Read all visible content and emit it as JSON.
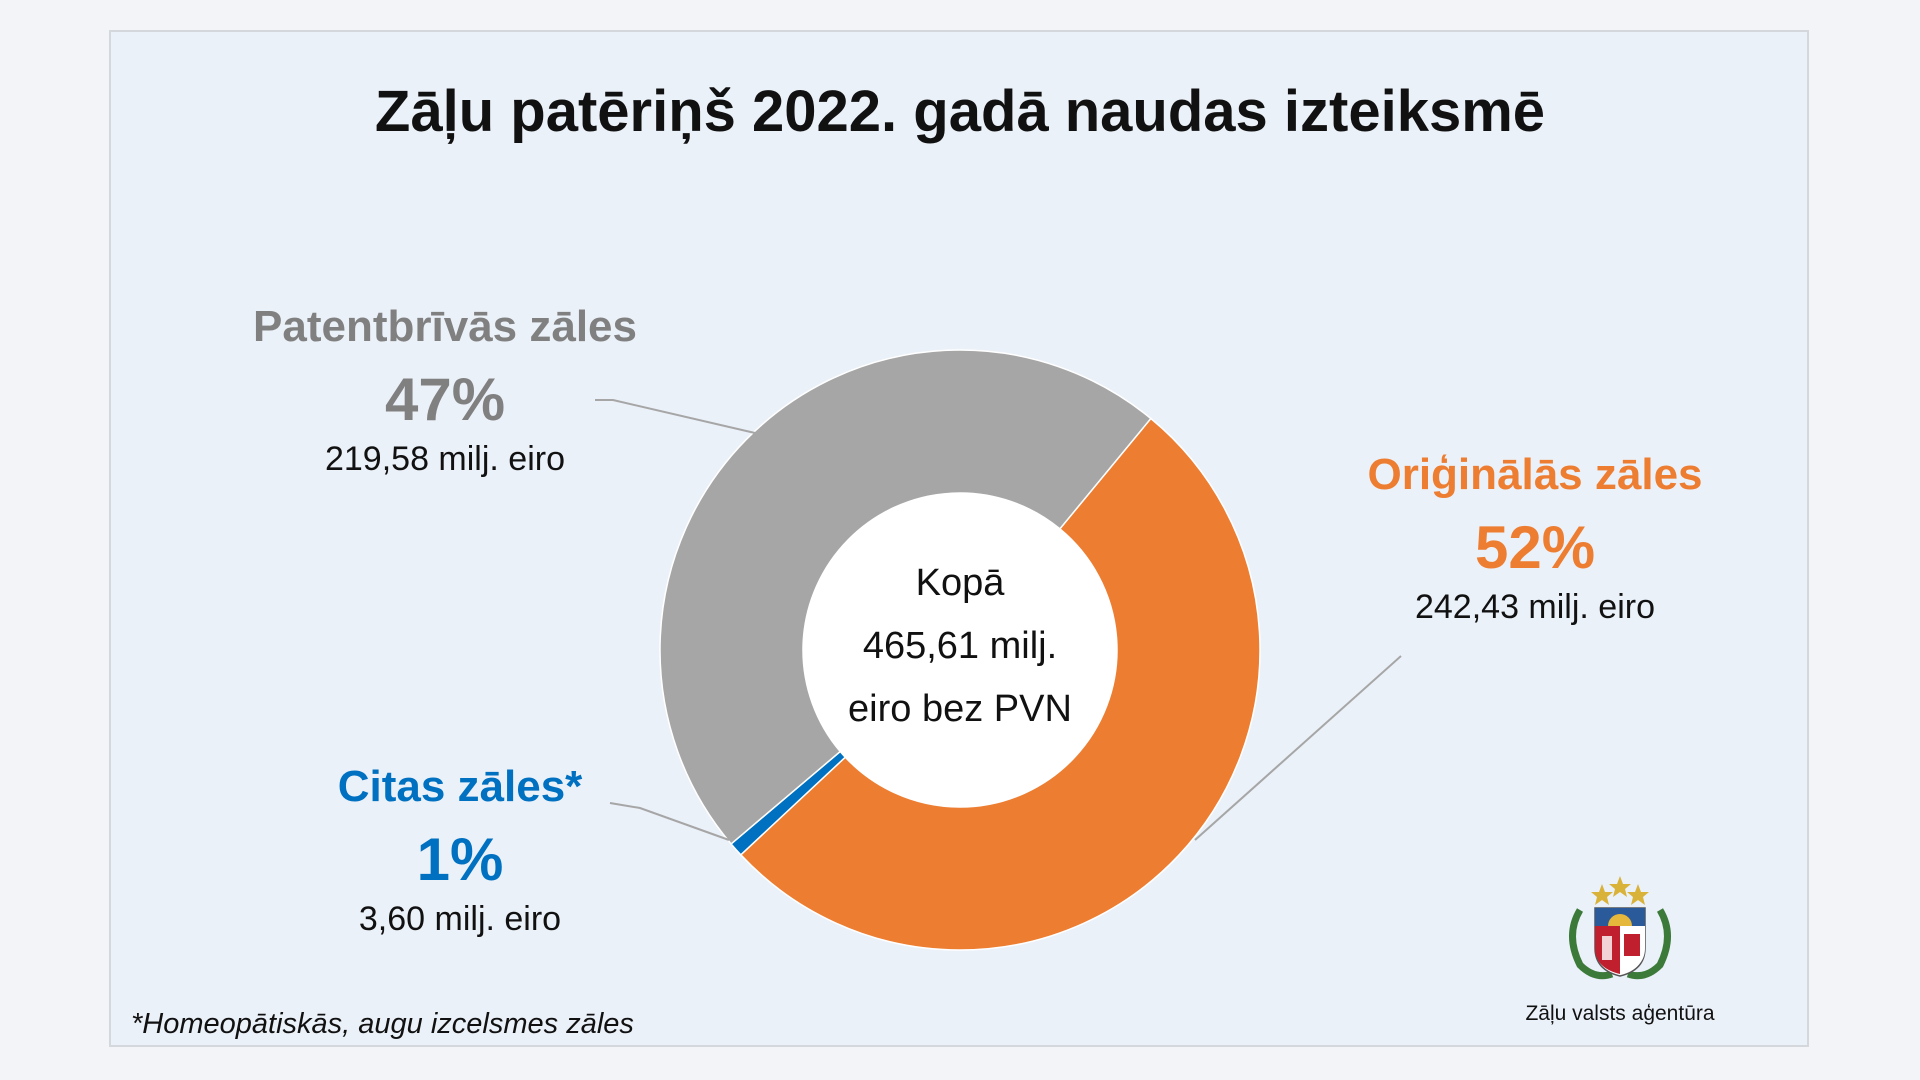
{
  "title": "Zāļu patēriņš 2022. gadā naudas izteiksmē",
  "center": {
    "line1": "Kopā",
    "line2": "465,61 milj.",
    "line3": "eiro bez PVN"
  },
  "footnote": "*Homeopātiskās, augu izcelsmes zāles",
  "logo": {
    "name": "Zāļu valsts aģentūra",
    "icon": "latvian-coat-of-arms"
  },
  "chart_data": {
    "type": "pie",
    "title": "Zāļu patēriņš 2022. gadā naudas izteiksmē",
    "donut": true,
    "total_label": "Kopā 465,61 milj. eiro bez PVN",
    "series": [
      {
        "name": "Oriģinālās zāles",
        "percent_label": "52%",
        "value": 242.43,
        "value_label": "242,43 milj. eiro",
        "color": "#ed7d31"
      },
      {
        "name": "Citas zāles*",
        "percent_label": "1%",
        "value": 3.6,
        "value_label": "3,60 milj. eiro",
        "color": "#0070c0"
      },
      {
        "name": "Patentbrīvās zāles",
        "percent_label": "47%",
        "value": 219.58,
        "value_label": "219,58 milj. eiro",
        "color": "#a6a6a6"
      }
    ]
  }
}
